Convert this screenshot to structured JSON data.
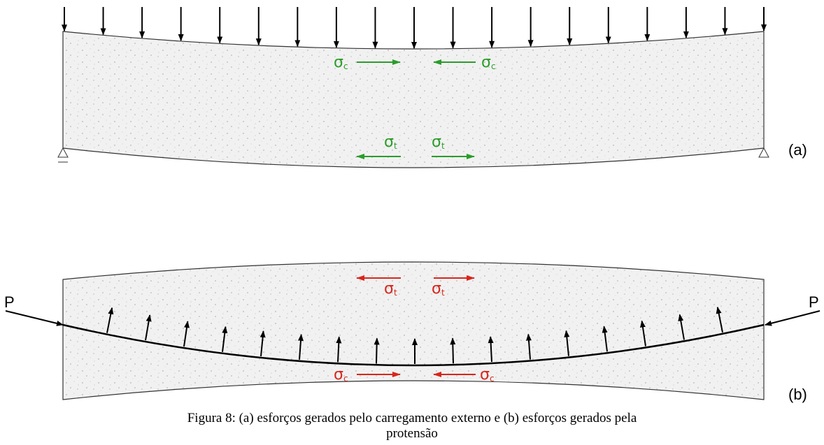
{
  "panel_a": {
    "label": "(a)",
    "stress_labels": [
      {
        "symbol": "σ",
        "subscript": "c"
      },
      {
        "symbol": "σ",
        "subscript": "c"
      },
      {
        "symbol": "σ",
        "subscript": "t"
      },
      {
        "symbol": "σ",
        "subscript": "t"
      }
    ]
  },
  "panel_b": {
    "label": "(b)",
    "loads": [
      "P",
      "P"
    ],
    "stress_labels": [
      {
        "symbol": "σ",
        "subscript": "t"
      },
      {
        "symbol": "σ",
        "subscript": "t"
      },
      {
        "symbol": "σ",
        "subscript": "c"
      },
      {
        "symbol": "σ",
        "subscript": "c"
      }
    ]
  },
  "caption": {
    "lines": [
      "Figura 8: (a) esforços gerados pelo carregamento externo e (b) esforços gerados pela",
      "protensão"
    ]
  }
}
